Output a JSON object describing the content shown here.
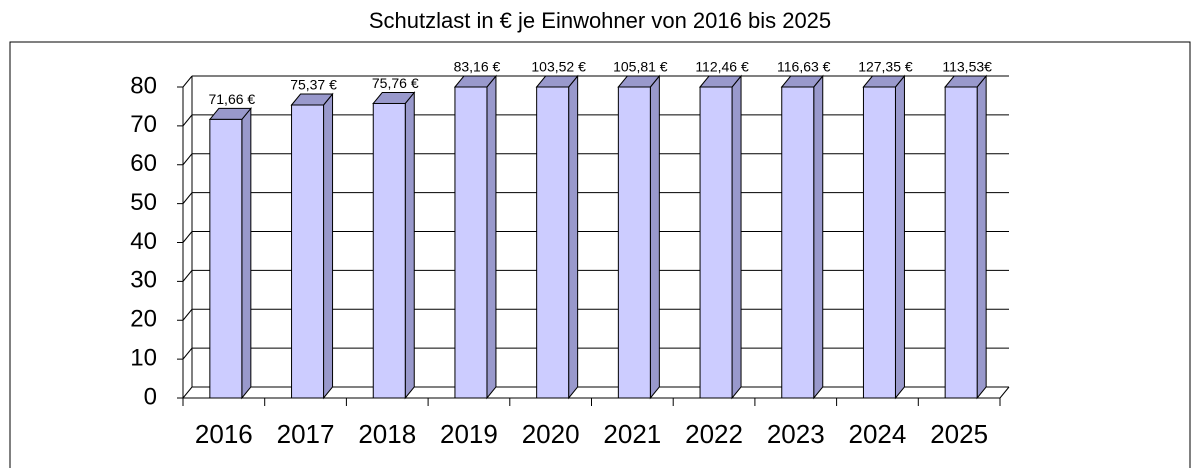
{
  "chart_data": {
    "type": "bar3d",
    "title": "Schutzlast in € je Einwohner von 2016 bis 2025",
    "categories": [
      "2016",
      "2017",
      "2018",
      "2019",
      "2020",
      "2021",
      "2022",
      "2023",
      "2024",
      "2025"
    ],
    "values": [
      71.66,
      75.37,
      75.76,
      83.16,
      103.52,
      105.81,
      112.46,
      116.63,
      127.35,
      113.53
    ],
    "value_labels": [
      "71,66 €",
      "75,37 €",
      "75,76 €",
      "83,16 €",
      "103,52 €",
      "105,81 €",
      "112,46 €",
      "116,63 €",
      "127,35 €",
      "113,53€"
    ],
    "color": "#ccccff",
    "ylim": [
      0,
      80
    ],
    "yticks": [
      0,
      10,
      20,
      30,
      40,
      50,
      60,
      70,
      80
    ],
    "grid": true
  }
}
